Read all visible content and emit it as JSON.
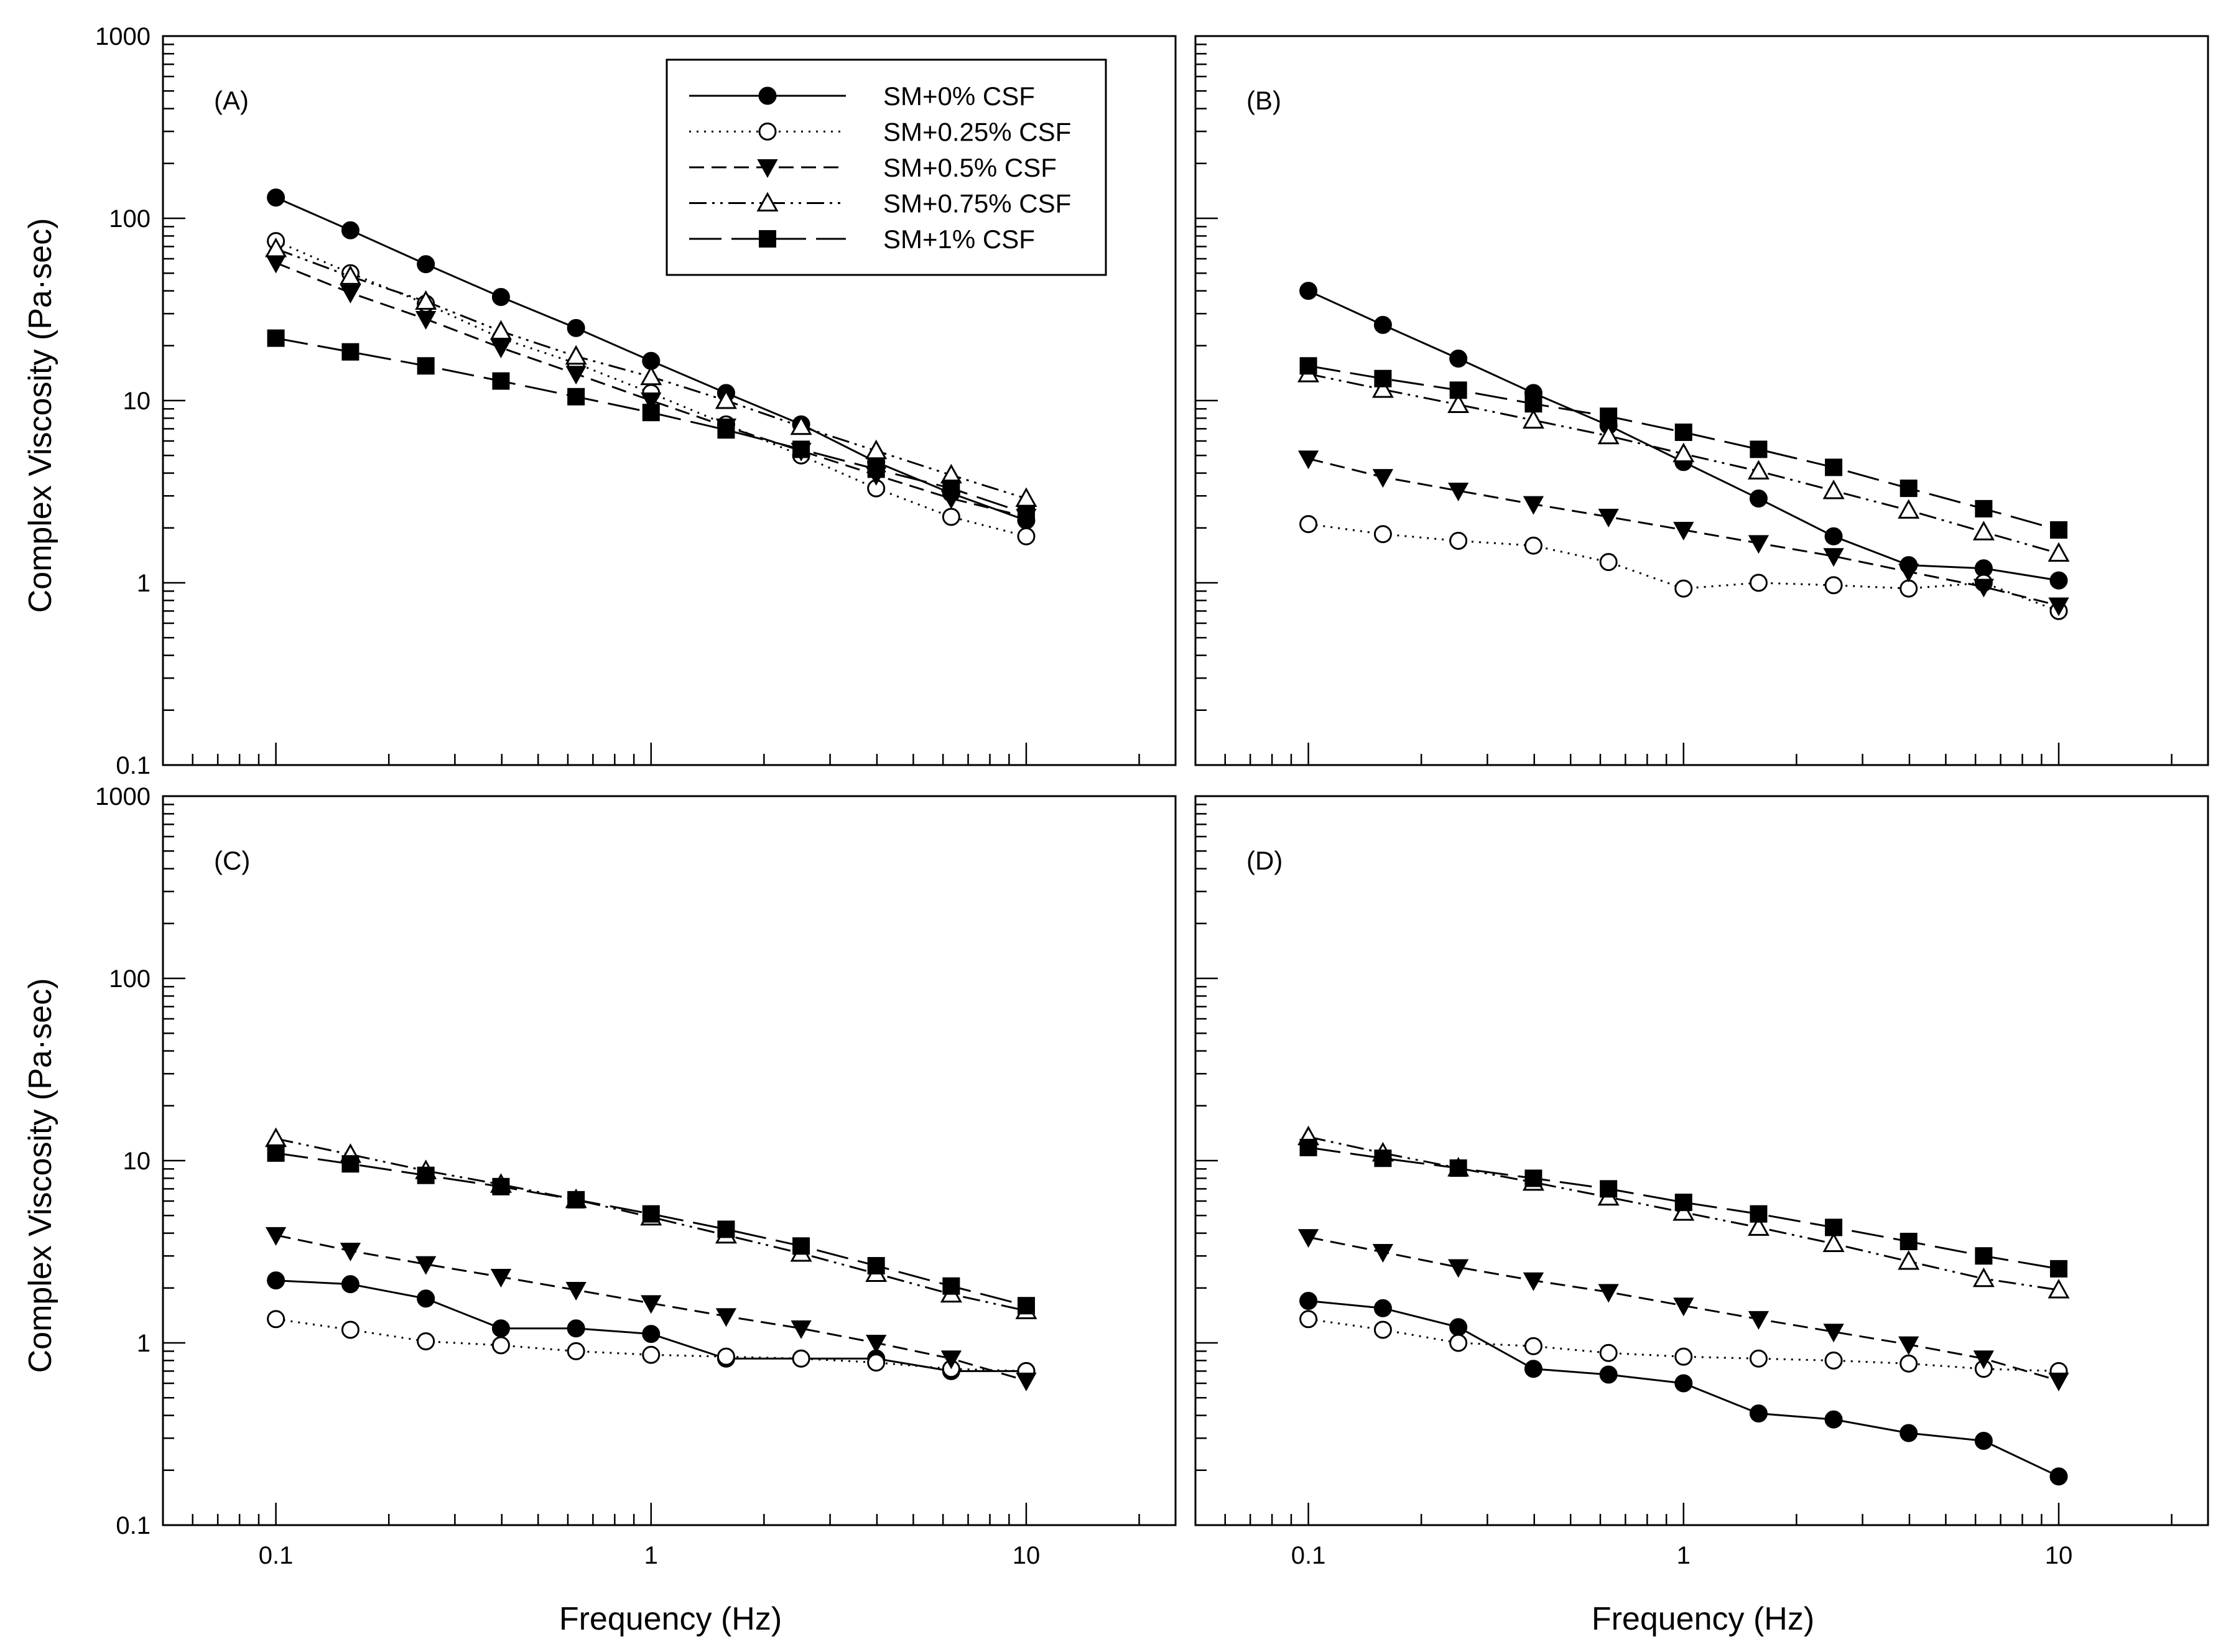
{
  "chart_data": {
    "type": "line",
    "layout": "2x2 grid",
    "x_axis": {
      "label": "Frequency (Hz)",
      "scale": "log",
      "range": [
        0.05,
        25
      ],
      "tick_labels": [
        "0.1",
        "1",
        "10"
      ]
    },
    "y_axis": {
      "label": "Complex Viscosity (Pa·sec)",
      "scale": "log",
      "range": [
        0.1,
        1000
      ],
      "tick_labels": [
        "0.1",
        "1",
        "10",
        "100",
        "1000"
      ]
    },
    "x": [
      0.1,
      0.158,
      0.251,
      0.398,
      0.631,
      1.0,
      1.585,
      2.512,
      3.981,
      6.31,
      10.0
    ],
    "legend": [
      {
        "name": "SM+0% CSF",
        "marker": "filled-circle",
        "dash": "solid"
      },
      {
        "name": "SM+0.25% CSF",
        "marker": "open-circle",
        "dash": "dotted"
      },
      {
        "name": "SM+0.5% CSF",
        "marker": "filled-triangle-down",
        "dash": "dashed"
      },
      {
        "name": "SM+0.75% CSF",
        "marker": "open-triangle-up",
        "dash": "dash-dot-dot"
      },
      {
        "name": "SM+1% CSF",
        "marker": "filled-square",
        "dash": "long-dash"
      }
    ],
    "panels": [
      {
        "label": "(A)",
        "series": [
          {
            "name": "SM+0% CSF",
            "values": [
              130,
              86,
              56,
              37,
              25,
              16.5,
              11,
              7.4,
              4.6,
              3.1,
              2.2
            ]
          },
          {
            "name": "SM+0.25% CSF",
            "values": [
              75,
              50,
              34,
              22,
              16,
              11,
              7.4,
              5.0,
              3.3,
              2.3,
              1.8
            ]
          },
          {
            "name": "SM+0.5% CSF",
            "values": [
              57,
              39,
              28,
              19.5,
              14,
              10,
              7.2,
              5.3,
              3.9,
              2.9,
              2.3
            ]
          },
          {
            "name": "SM+0.75% CSF",
            "values": [
              68,
              48,
              35,
              24,
              17.5,
              13.5,
              10,
              7.2,
              5.3,
              3.9,
              2.9
            ]
          },
          {
            "name": "SM+1% CSF",
            "values": [
              22,
              18.5,
              15.5,
              12.8,
              10.5,
              8.6,
              6.9,
              5.4,
              4.2,
              3.3,
              2.4
            ]
          }
        ]
      },
      {
        "label": "(B)",
        "series": [
          {
            "name": "SM+0% CSF",
            "values": [
              40,
              26,
              17,
              11,
              7.3,
              4.6,
              2.9,
              1.8,
              1.25,
              1.2,
              1.03
            ]
          },
          {
            "name": "SM+0.25% CSF",
            "values": [
              2.1,
              1.85,
              1.7,
              1.6,
              1.3,
              0.93,
              1.0,
              0.97,
              0.93,
              1.0,
              0.7
            ]
          },
          {
            "name": "SM+0.5% CSF",
            "values": [
              4.8,
              3.8,
              3.2,
              2.7,
              2.3,
              1.95,
              1.65,
              1.4,
              1.15,
              0.95,
              0.75
            ]
          },
          {
            "name": "SM+0.75% CSF",
            "values": [
              14,
              11.5,
              9.5,
              7.8,
              6.4,
              5.1,
              4.1,
              3.2,
              2.5,
              1.9,
              1.45
            ]
          },
          {
            "name": "SM+1% CSF",
            "values": [
              15.5,
              13.2,
              11.4,
              9.6,
              8.2,
              6.7,
              5.4,
              4.3,
              3.3,
              2.55,
              1.95
            ]
          }
        ]
      },
      {
        "label": "(C)",
        "series": [
          {
            "name": "SM+0% CSF",
            "values": [
              2.2,
              2.1,
              1.75,
              1.2,
              1.2,
              1.12,
              0.82,
              0.82,
              0.82,
              0.7,
              0.7
            ]
          },
          {
            "name": "SM+0.25% CSF",
            "values": [
              1.35,
              1.18,
              1.02,
              0.97,
              0.9,
              0.86,
              0.84,
              0.82,
              0.78,
              0.72,
              0.7
            ]
          },
          {
            "name": "SM+0.5% CSF",
            "values": [
              3.9,
              3.2,
              2.7,
              2.3,
              1.95,
              1.65,
              1.4,
              1.2,
              1.0,
              0.82,
              0.62
            ]
          },
          {
            "name": "SM+0.75% CSF",
            "values": [
              13.2,
              10.8,
              8.8,
              7.4,
              6.1,
              4.9,
              3.9,
              3.1,
              2.4,
              1.85,
              1.5
            ]
          },
          {
            "name": "SM+1% CSF",
            "values": [
              11,
              9.6,
              8.3,
              7.2,
              6.1,
              5.1,
              4.2,
              3.4,
              2.65,
              2.05,
              1.6
            ]
          }
        ]
      },
      {
        "label": "(D)",
        "series": [
          {
            "name": "SM+0% CSF",
            "values": [
              1.7,
              1.55,
              1.22,
              0.72,
              0.67,
              0.6,
              0.41,
              0.38,
              0.32,
              0.29,
              0.185
            ]
          },
          {
            "name": "SM+0.25% CSF",
            "values": [
              1.35,
              1.18,
              1.0,
              0.96,
              0.88,
              0.84,
              0.82,
              0.8,
              0.77,
              0.72,
              0.7
            ]
          },
          {
            "name": "SM+0.5% CSF",
            "values": [
              3.8,
              3.15,
              2.6,
              2.2,
              1.9,
              1.6,
              1.35,
              1.15,
              0.98,
              0.82,
              0.62
            ]
          },
          {
            "name": "SM+0.75% CSF",
            "values": [
              13.5,
              11,
              9.1,
              7.6,
              6.3,
              5.2,
              4.3,
              3.5,
              2.8,
              2.25,
              1.95
            ]
          },
          {
            "name": "SM+1% CSF",
            "values": [
              11.8,
              10.3,
              9.1,
              8.0,
              7.0,
              5.9,
              5.1,
              4.3,
              3.6,
              3.0,
              2.55
            ]
          }
        ]
      }
    ]
  }
}
